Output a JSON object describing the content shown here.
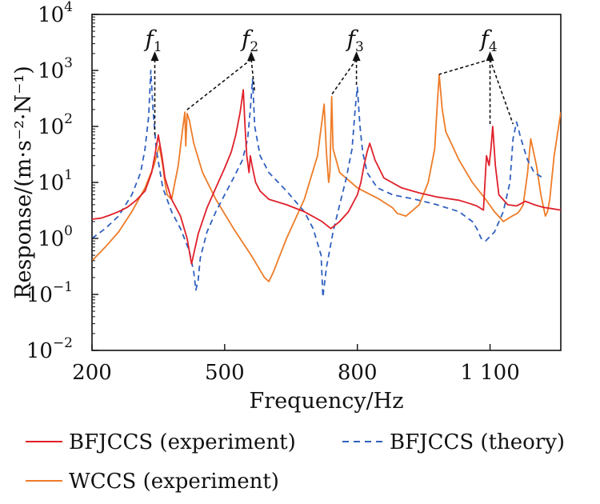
{
  "chart_data": {
    "type": "line",
    "xlabel": "Frequency/Hz",
    "ylabel": "Response/(m·s⁻²·N⁻¹)",
    "y_scale": "log",
    "xlim": [
      200,
      1260
    ],
    "ylim": [
      0.01,
      10000
    ],
    "x_ticks": [
      200,
      500,
      800,
      1100
    ],
    "x_tick_labels": [
      "200",
      "500",
      "800",
      "1 100"
    ],
    "y_ticks": [
      {
        "value": 0.01,
        "base": "10",
        "exp": "−2"
      },
      {
        "value": 0.1,
        "base": "10",
        "exp": "−1"
      },
      {
        "value": 1,
        "base": "10",
        "exp": "0"
      },
      {
        "value": 10,
        "base": "10",
        "exp": "1"
      },
      {
        "value": 100,
        "base": "10",
        "exp": "2"
      },
      {
        "value": 1000,
        "base": "10",
        "exp": "3"
      },
      {
        "value": 10000,
        "base": "10",
        "exp": "4"
      }
    ],
    "grid": false,
    "legend_position": "bottom",
    "series": [
      {
        "name": "BFJCCS (experiment)",
        "color": "#e0202a",
        "dash": "solid",
        "x": [
          200,
          220,
          240,
          260,
          280,
          300,
          320,
          335,
          342,
          350,
          358,
          365,
          380,
          400,
          415,
          425,
          440,
          460,
          480,
          500,
          515,
          525,
          535,
          542,
          546,
          550,
          555,
          558,
          562,
          570,
          580,
          600,
          640,
          680,
          720,
          740,
          760,
          780,
          800,
          808,
          815,
          822,
          828,
          840,
          860,
          900,
          940,
          980,
          1000,
          1030,
          1050,
          1070,
          1085,
          1092,
          1098,
          1102,
          1106,
          1112,
          1120,
          1140,
          1160,
          1180,
          1200,
          1220,
          1240,
          1260
        ],
        "y": [
          2.2,
          2.3,
          2.6,
          3.0,
          3.6,
          4.8,
          7,
          15,
          30,
          70,
          30,
          12,
          5,
          2.5,
          1.0,
          0.35,
          1.2,
          3.5,
          8,
          18,
          35,
          70,
          180,
          450,
          100,
          30,
          15,
          30,
          20,
          10,
          7,
          5,
          4,
          3,
          2,
          1.5,
          2.0,
          3,
          6,
          10,
          20,
          35,
          50,
          25,
          12,
          8,
          6.5,
          5.5,
          5.2,
          4.8,
          4.3,
          3.8,
          3.2,
          30,
          20,
          40,
          100,
          20,
          6,
          4,
          3.8,
          4.6,
          4.0,
          3.6,
          3.4,
          3.2
        ]
      },
      {
        "name": "BFJCCS (theory)",
        "color": "#3060c0",
        "dash": "dashed",
        "x": [
          200,
          230,
          260,
          290,
          310,
          320,
          328,
          333,
          338,
          345,
          360,
          380,
          400,
          420,
          430,
          435,
          440,
          445,
          460,
          480,
          500,
          520,
          540,
          552,
          558,
          563,
          568,
          580,
          600,
          640,
          680,
          700,
          718,
          722,
          730,
          745,
          760,
          775,
          788,
          795,
          800,
          806,
          812,
          822,
          845,
          880,
          930,
          980,
          1030,
          1060,
          1070,
          1080,
          1090,
          1110,
          1130,
          1145,
          1152,
          1160,
          1170,
          1185,
          1200,
          1220
        ],
        "y": [
          1.0,
          1.5,
          2.5,
          6,
          15,
          40,
          150,
          1000,
          200,
          40,
          8,
          3,
          1.5,
          0.6,
          0.25,
          0.12,
          0.18,
          0.45,
          1.3,
          3,
          6,
          12,
          25,
          60,
          200,
          700,
          100,
          30,
          15,
          7,
          3,
          1.5,
          0.5,
          0.09,
          0.3,
          1.3,
          4,
          12,
          40,
          200,
          500,
          100,
          35,
          15,
          8,
          6,
          5,
          4,
          3,
          2,
          1.5,
          1.0,
          0.9,
          1.3,
          3,
          10,
          60,
          120,
          60,
          25,
          15,
          12
        ]
      },
      {
        "name": "WCCS (experiment)",
        "color": "#ee7c28",
        "dash": "solid",
        "x": [
          200,
          230,
          260,
          290,
          320,
          340,
          352,
          360,
          365,
          370,
          380,
          395,
          405,
          410,
          412,
          415,
          420,
          430,
          450,
          480,
          520,
          560,
          590,
          600,
          610,
          640,
          680,
          710,
          725,
          730,
          735,
          738,
          742,
          745,
          760,
          800,
          850,
          880,
          890,
          910,
          940,
          960,
          975,
          980,
          985,
          992,
          1000,
          1030,
          1060,
          1090,
          1110,
          1130,
          1150,
          1162,
          1168,
          1175,
          1185,
          1192,
          1205,
          1215,
          1225,
          1230,
          1235,
          1245,
          1260
        ],
        "y": [
          0.4,
          0.7,
          1.3,
          3,
          8,
          20,
          45,
          20,
          10,
          6,
          5,
          20,
          90,
          180,
          45,
          170,
          130,
          50,
          15,
          5,
          1.5,
          0.5,
          0.2,
          0.17,
          0.25,
          1,
          5,
          30,
          250,
          35,
          10,
          15,
          340,
          40,
          15,
          8,
          5,
          3.5,
          2.8,
          2.5,
          4,
          10,
          40,
          200,
          850,
          200,
          80,
          25,
          10,
          5,
          3,
          2,
          2.5,
          2.8,
          3.2,
          4,
          15,
          60,
          20,
          6,
          2.5,
          3,
          5,
          30,
          180
        ]
      }
    ],
    "peak_annotations": [
      {
        "letter": "f",
        "sub": "1",
        "apex": {
          "x": 342,
          "y": 1800
        },
        "targets": [
          {
            "x": 342,
            "y": 70
          }
        ]
      },
      {
        "letter": "f",
        "sub": "2",
        "apex": {
          "x": 560,
          "y": 1800
        },
        "targets": [
          {
            "x": 412,
            "y": 190
          },
          {
            "x": 568,
            "y": 400
          }
        ]
      },
      {
        "letter": "f",
        "sub": "3",
        "apex": {
          "x": 798,
          "y": 1800
        },
        "targets": [
          {
            "x": 742,
            "y": 370
          },
          {
            "x": 798,
            "y": 500
          }
        ]
      },
      {
        "letter": "f",
        "sub": "4",
        "apex": {
          "x": 1100,
          "y": 1800
        },
        "targets": [
          {
            "x": 985,
            "y": 850
          },
          {
            "x": 1100,
            "y": 100
          },
          {
            "x": 1152,
            "y": 110
          }
        ]
      }
    ]
  }
}
